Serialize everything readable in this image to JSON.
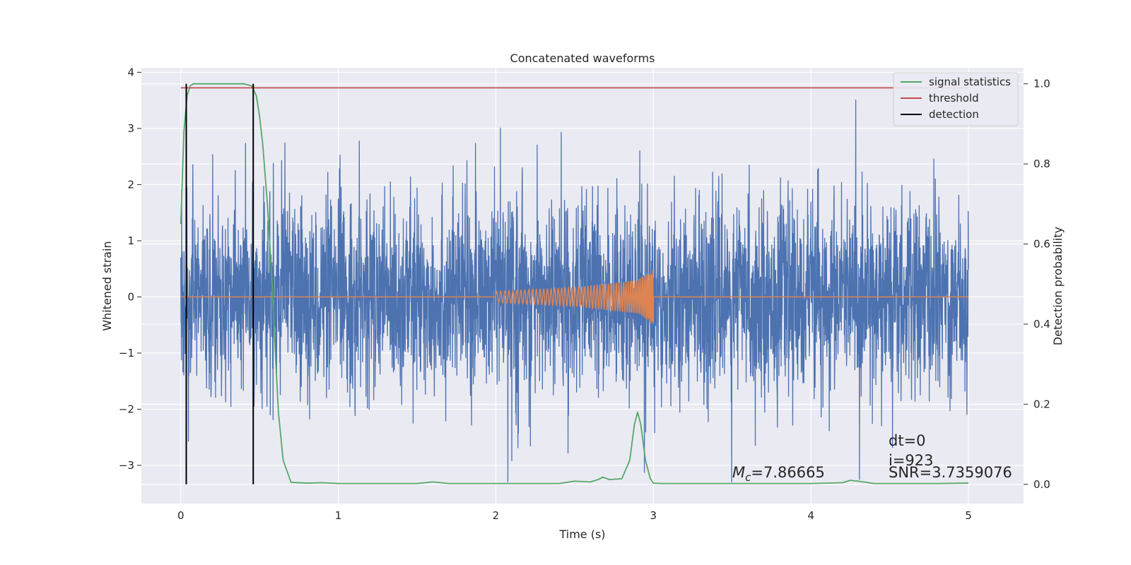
{
  "chart_data": {
    "type": "line",
    "title": "Concatenated waveforms",
    "xlabel": "Time (s)",
    "ylabel": "Whitened strain",
    "y2label": "Detection probability",
    "xlim": [
      -0.25,
      5.35
    ],
    "ylim": [
      -3.68,
      4.08
    ],
    "y2lim": [
      -0.048,
      1.04
    ],
    "xticks": [
      0,
      1,
      2,
      3,
      4,
      5
    ],
    "xtick_labels": [
      "0",
      "1",
      "2",
      "3",
      "4",
      "5"
    ],
    "yticks": [
      -3,
      -2,
      -1,
      0,
      1,
      2,
      3,
      4
    ],
    "ytick_labels": [
      "−3",
      "−2",
      "−1",
      "0",
      "1",
      "2",
      "3",
      "4"
    ],
    "y2ticks": [
      0.0,
      0.2,
      0.4,
      0.6,
      0.8,
      1.0
    ],
    "y2tick_labels": [
      "0.0",
      "0.2",
      "0.4",
      "0.6",
      "0.8",
      "1.0"
    ],
    "grid": true,
    "legend_position": "top-right",
    "colors": {
      "noise": "#4c72b0",
      "template": "#dd8452",
      "signal_statistics": "#55a868",
      "threshold": "#c44e52",
      "detection": "#000000",
      "background": "#eaeaf2",
      "grid": "#ffffff"
    },
    "series": [
      {
        "name": "noise strain",
        "axis": "left",
        "description": "whitened noise, mostly within ±2.5, spikes up to ~3.7 and down to ~−3.3",
        "x_range": [
          0,
          5
        ],
        "y_envelope": [
          -3.3,
          3.7
        ]
      },
      {
        "name": "template waveform",
        "axis": "left",
        "x": [
          0,
          2.0,
          2.5,
          2.9,
          3.0,
          5.0
        ],
        "amp": [
          0,
          0.1,
          0.17,
          0.3,
          0.5,
          0
        ]
      },
      {
        "name": "signal statistics",
        "axis": "right",
        "x": [
          0,
          0.02,
          0.04,
          0.06,
          0.08,
          0.1,
          0.2,
          0.3,
          0.4,
          0.45,
          0.48,
          0.5,
          0.52,
          0.55,
          0.58,
          0.6,
          0.62,
          0.65,
          0.7,
          0.8,
          0.9,
          1.0,
          1.5,
          1.6,
          1.65,
          1.7,
          2.0,
          2.4,
          2.5,
          2.6,
          2.65,
          2.68,
          2.72,
          2.8,
          2.85,
          2.88,
          2.9,
          2.92,
          2.95,
          2.98,
          3.0,
          3.05,
          3.5,
          4.0,
          4.2,
          4.25,
          4.3,
          4.4,
          4.8,
          5.0
        ],
        "y": [
          0.65,
          0.88,
          0.97,
          0.995,
          1.0,
          1.0,
          1.0,
          1.0,
          1.0,
          0.995,
          0.97,
          0.92,
          0.85,
          0.7,
          0.5,
          0.33,
          0.18,
          0.06,
          0.005,
          0.003,
          0.004,
          0.002,
          0.002,
          0.006,
          0.004,
          0.002,
          0.002,
          0.002,
          0.008,
          0.006,
          0.012,
          0.018,
          0.012,
          0.014,
          0.06,
          0.15,
          0.18,
          0.15,
          0.06,
          0.015,
          0.003,
          0.002,
          0.002,
          0.002,
          0.004,
          0.01,
          0.008,
          0.002,
          0.002,
          0.003
        ]
      },
      {
        "name": "threshold",
        "axis": "right",
        "x": [
          0,
          5
        ],
        "y": [
          0.99,
          0.99
        ]
      },
      {
        "name": "detection",
        "axis": "right",
        "x": [
          0.035,
          0.46
        ],
        "y_range": [
          0.0,
          1.0
        ]
      }
    ],
    "legend": [
      "signal statistics",
      "threshold",
      "detection"
    ],
    "annotations": {
      "mc_symbol": "M",
      "mc_subscript": "c",
      "mc_value": "=7.86665",
      "dt": "dt=0",
      "i": "i=923",
      "snr": "SNR=3.7359076"
    }
  }
}
